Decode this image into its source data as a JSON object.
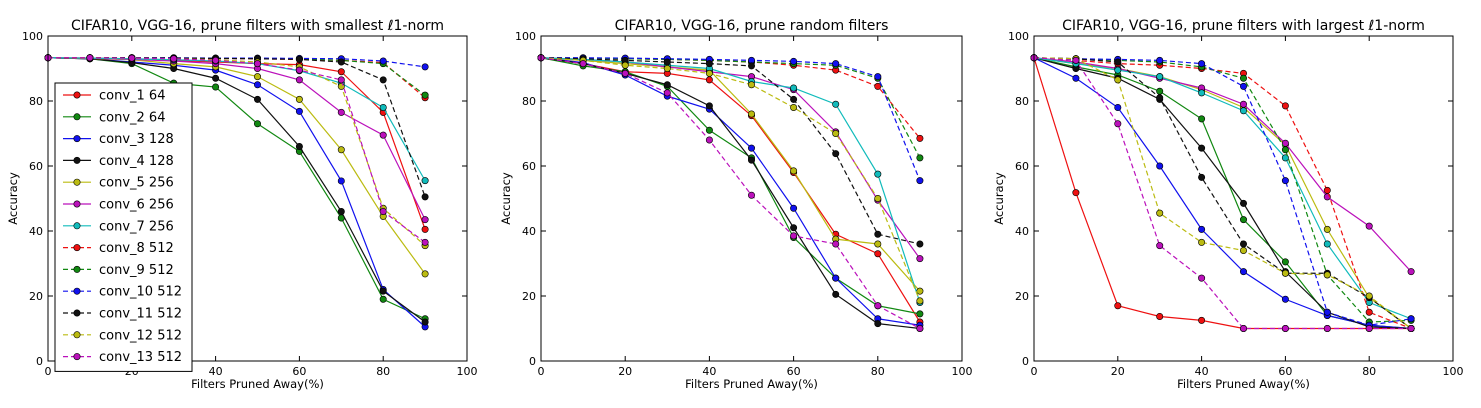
{
  "colors": {
    "conv_1 64": "#ee1111",
    "conv_2 64": "#118811",
    "conv_3 128": "#1111ee",
    "conv_4 128": "#111111",
    "conv_5 256": "#bbbb11",
    "conv_6 256": "#bb11bb",
    "conv_7 256": "#11bbbb",
    "conv_8 512": "#ee1111",
    "conv_9 512": "#118811",
    "conv_10 512": "#1111ee",
    "conv_11 512": "#111111",
    "conv_12 512": "#bbbb11",
    "conv_13 512": "#bb11bb"
  },
  "chart_data": [
    {
      "type": "line",
      "title": "CIFAR10, VGG-16, prune filters with smallest ℓ1-norm",
      "xlabel": "Filters Pruned Away(%)",
      "ylabel": "Accuracy",
      "xlim": [
        0,
        100
      ],
      "ylim": [
        0,
        100
      ],
      "xticks": [
        "0",
        "20",
        "40",
        "60",
        "80",
        "100"
      ],
      "yticks": [
        "0",
        "20",
        "40",
        "60",
        "80",
        "100"
      ],
      "legend": "upper left",
      "x": [
        0,
        10,
        20,
        30,
        40,
        50,
        60,
        70,
        80,
        90
      ],
      "series": [
        {
          "name": "conv_1 64",
          "dashed": false,
          "values": [
            93.3,
            93.2,
            93.0,
            92.5,
            92.0,
            91.5,
            91.2,
            89.0,
            76.5,
            40.5
          ]
        },
        {
          "name": "conv_2 64",
          "dashed": false,
          "values": [
            93.3,
            93.0,
            91.5,
            85.5,
            84.3,
            73.0,
            64.5,
            44.0,
            19.0,
            13.0
          ]
        },
        {
          "name": "conv_3 128",
          "dashed": false,
          "values": [
            93.3,
            93.0,
            92.0,
            91.0,
            89.5,
            85.0,
            76.8,
            55.4,
            22.0,
            10.5
          ]
        },
        {
          "name": "conv_4 128",
          "dashed": false,
          "values": [
            93.3,
            93.0,
            91.8,
            90.0,
            87.0,
            80.5,
            66.0,
            46.0,
            21.5,
            12.0
          ]
        },
        {
          "name": "conv_5 256",
          "dashed": false,
          "values": [
            93.3,
            93.1,
            92.7,
            91.5,
            90.5,
            87.5,
            80.5,
            65.0,
            44.5,
            26.8
          ]
        },
        {
          "name": "conv_6 256",
          "dashed": false,
          "values": [
            93.3,
            93.2,
            92.8,
            92.3,
            91.5,
            90.0,
            86.5,
            76.5,
            69.5,
            43.5
          ]
        },
        {
          "name": "conv_7 256",
          "dashed": false,
          "values": [
            93.3,
            93.2,
            93.0,
            92.7,
            92.3,
            91.5,
            89.3,
            85.5,
            78.0,
            55.5
          ]
        },
        {
          "name": "conv_8 512",
          "dashed": true,
          "values": [
            93.3,
            93.3,
            93.3,
            93.2,
            93.1,
            93.0,
            92.8,
            92.5,
            91.8,
            81.0
          ]
        },
        {
          "name": "conv_9 512",
          "dashed": true,
          "values": [
            93.3,
            93.3,
            93.3,
            93.2,
            93.2,
            93.1,
            93.0,
            92.5,
            91.5,
            81.8
          ]
        },
        {
          "name": "conv_10 512",
          "dashed": true,
          "values": [
            93.3,
            93.3,
            93.3,
            93.3,
            93.2,
            93.2,
            93.1,
            93.0,
            92.3,
            90.5
          ]
        },
        {
          "name": "conv_11 512",
          "dashed": true,
          "values": [
            93.3,
            93.3,
            93.3,
            93.2,
            93.1,
            93.0,
            92.8,
            92.0,
            86.5,
            50.5
          ]
        },
        {
          "name": "conv_12 512",
          "dashed": true,
          "values": [
            93.3,
            93.3,
            93.2,
            93.0,
            92.7,
            92.0,
            90.5,
            84.5,
            47.0,
            35.5
          ]
        },
        {
          "name": "conv_13 512",
          "dashed": true,
          "values": [
            93.3,
            93.3,
            93.2,
            93.0,
            92.5,
            91.5,
            89.5,
            86.5,
            46.0,
            36.5
          ]
        }
      ]
    },
    {
      "type": "line",
      "title": "CIFAR10, VGG-16, prune random filters",
      "xlabel": "Filters Pruned Away(%)",
      "ylabel": "Accuracy",
      "xlim": [
        0,
        100
      ],
      "ylim": [
        0,
        100
      ],
      "xticks": [
        "0",
        "20",
        "40",
        "60",
        "80",
        "100"
      ],
      "yticks": [
        "0",
        "20",
        "40",
        "60",
        "80",
        "100"
      ],
      "x": [
        0,
        10,
        20,
        30,
        40,
        50,
        60,
        70,
        80,
        90
      ],
      "series": [
        {
          "name": "conv_1 64",
          "dashed": false,
          "values": [
            93.3,
            91.5,
            89.0,
            88.5,
            86.5,
            75.5,
            58.0,
            39.0,
            33.0,
            12.0
          ]
        },
        {
          "name": "conv_2 64",
          "dashed": false,
          "values": [
            93.3,
            90.8,
            89.0,
            84.5,
            71.0,
            62.5,
            38.0,
            25.5,
            17.0,
            14.5
          ]
        },
        {
          "name": "conv_3 128",
          "dashed": false,
          "values": [
            93.3,
            91.8,
            88.0,
            81.5,
            77.5,
            65.5,
            47.0,
            25.5,
            13.0,
            11.0
          ]
        },
        {
          "name": "conv_4 128",
          "dashed": false,
          "values": [
            93.3,
            91.5,
            88.5,
            85.0,
            78.5,
            61.8,
            41.0,
            20.5,
            11.5,
            10.0
          ]
        },
        {
          "name": "conv_5 256",
          "dashed": false,
          "values": [
            93.3,
            92.5,
            91.5,
            90.5,
            89.5,
            76.0,
            58.5,
            37.5,
            36.0,
            21.5
          ]
        },
        {
          "name": "conv_6 256",
          "dashed": false,
          "values": [
            93.3,
            92.8,
            92.0,
            90.5,
            89.0,
            87.5,
            83.5,
            70.5,
            49.5,
            31.5
          ]
        },
        {
          "name": "conv_7 256",
          "dashed": false,
          "values": [
            93.3,
            92.8,
            92.0,
            91.0,
            90.0,
            86.0,
            84.0,
            79.0,
            57.5,
            18.0
          ]
        },
        {
          "name": "conv_8 512",
          "dashed": true,
          "values": [
            93.3,
            93.2,
            93.0,
            92.8,
            92.5,
            92.0,
            91.0,
            89.5,
            84.5,
            68.5
          ]
        },
        {
          "name": "conv_9 512",
          "dashed": true,
          "values": [
            93.3,
            93.2,
            93.0,
            92.8,
            92.5,
            92.0,
            91.5,
            91.0,
            87.0,
            62.5
          ]
        },
        {
          "name": "conv_10 512",
          "dashed": true,
          "values": [
            93.3,
            93.3,
            93.2,
            93.0,
            92.8,
            92.5,
            92.2,
            91.5,
            87.5,
            55.5
          ]
        },
        {
          "name": "conv_11 512",
          "dashed": true,
          "values": [
            93.3,
            93.0,
            92.5,
            92.0,
            91.5,
            90.8,
            80.5,
            63.8,
            39.0,
            36.0
          ]
        },
        {
          "name": "conv_12 512",
          "dashed": true,
          "values": [
            93.3,
            92.5,
            91.0,
            90.0,
            88.5,
            85.0,
            78.0,
            70.0,
            50.0,
            18.5
          ]
        },
        {
          "name": "conv_13 512",
          "dashed": true,
          "values": [
            93.3,
            91.5,
            88.5,
            82.5,
            68.0,
            51.0,
            38.5,
            36.0,
            17.0,
            10.0
          ]
        }
      ]
    },
    {
      "type": "line",
      "title": "CIFAR10, VGG-16, prune filters with largest ℓ1-norm",
      "xlabel": "Filters Pruned Away(%)",
      "ylabel": "Accuracy",
      "xlim": [
        0,
        100
      ],
      "ylim": [
        0,
        100
      ],
      "xticks": [
        "0",
        "20",
        "40",
        "60",
        "80",
        "100"
      ],
      "yticks": [
        "0",
        "20",
        "40",
        "60",
        "80",
        "100"
      ],
      "x": [
        0,
        10,
        20,
        30,
        40,
        50,
        60,
        70,
        80,
        90
      ],
      "series": [
        {
          "name": "conv_1 64",
          "dashed": false,
          "values": [
            93.3,
            51.8,
            17.0,
            13.7,
            12.5,
            10.0,
            10.0,
            10.0,
            10.0,
            10.0
          ]
        },
        {
          "name": "conv_2 64",
          "dashed": false,
          "values": [
            93.3,
            90.5,
            88.0,
            83.0,
            74.5,
            43.5,
            30.5,
            14.0,
            11.0,
            10.0
          ]
        },
        {
          "name": "conv_3 128",
          "dashed": false,
          "values": [
            93.3,
            87.0,
            78.0,
            60.0,
            40.5,
            27.5,
            19.0,
            14.0,
            11.0,
            10.0
          ]
        },
        {
          "name": "conv_4 128",
          "dashed": false,
          "values": [
            93.3,
            90.0,
            87.0,
            80.5,
            65.5,
            48.5,
            27.5,
            15.0,
            10.5,
            10.0
          ]
        },
        {
          "name": "conv_5 256",
          "dashed": false,
          "values": [
            93.3,
            91.5,
            90.0,
            87.5,
            83.5,
            78.0,
            66.5,
            40.5,
            19.5,
            10.0
          ]
        },
        {
          "name": "conv_6 256",
          "dashed": false,
          "values": [
            93.3,
            92.0,
            90.0,
            87.0,
            84.0,
            79.0,
            67.0,
            50.5,
            41.5,
            27.5
          ]
        },
        {
          "name": "conv_7 256",
          "dashed": false,
          "values": [
            93.3,
            91.5,
            89.5,
            87.5,
            82.5,
            77.0,
            62.5,
            36.0,
            18.0,
            13.0
          ]
        },
        {
          "name": "conv_8 512",
          "dashed": true,
          "values": [
            93.3,
            92.5,
            91.5,
            91.0,
            90.0,
            88.5,
            78.5,
            52.5,
            15.0,
            10.0
          ]
        },
        {
          "name": "conv_9 512",
          "dashed": true,
          "values": [
            93.3,
            93.0,
            92.5,
            92.0,
            90.5,
            87.0,
            65.0,
            26.5,
            12.0,
            12.5
          ]
        },
        {
          "name": "conv_10 512",
          "dashed": true,
          "values": [
            93.3,
            93.0,
            92.8,
            92.5,
            91.5,
            84.5,
            55.5,
            15.0,
            11.0,
            13.0
          ]
        },
        {
          "name": "conv_11 512",
          "dashed": true,
          "values": [
            93.3,
            93.0,
            92.0,
            81.0,
            56.5,
            36.0,
            27.0,
            27.0,
            19.5,
            10.0
          ]
        },
        {
          "name": "conv_12 512",
          "dashed": true,
          "values": [
            93.3,
            93.0,
            86.5,
            45.5,
            36.5,
            34.0,
            27.0,
            26.5,
            20.0,
            10.0
          ]
        },
        {
          "name": "conv_13 512",
          "dashed": true,
          "values": [
            93.3,
            92.5,
            73.0,
            35.5,
            25.5,
            10.0,
            10.0,
            10.0,
            10.0,
            10.0
          ]
        }
      ]
    }
  ]
}
